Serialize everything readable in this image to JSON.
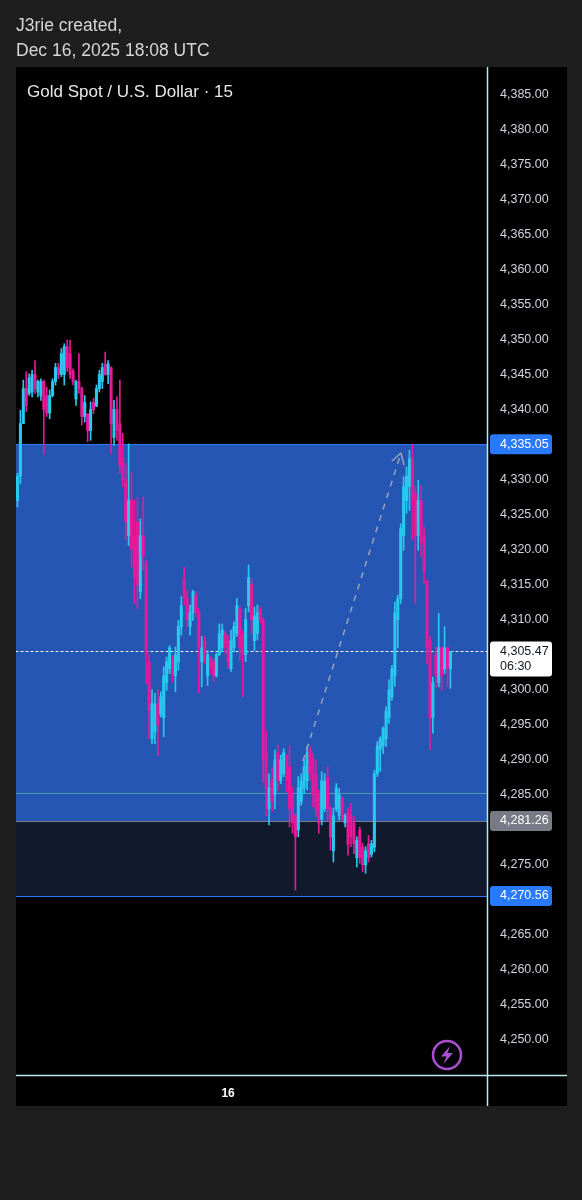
{
  "chart_data": {
    "type": "candlestick",
    "title": "Gold Spot / U.S. Dollar · 15",
    "annotations": [
      "J3rie created,",
      "Dec 16, 2025 18:08 UTC"
    ],
    "categories": [
      null,
      null,
      null,
      null,
      null,
      null,
      null,
      null,
      null,
      null,
      null,
      null,
      null,
      null,
      null,
      null,
      null,
      null,
      null,
      null,
      null,
      null,
      null,
      null,
      null,
      null,
      null,
      null,
      null,
      null,
      null,
      null,
      null,
      null,
      null,
      null,
      null,
      null,
      null,
      null,
      null,
      null,
      null,
      null,
      null,
      null,
      null,
      null,
      null,
      null,
      null,
      null,
      null,
      null,
      null,
      null,
      null,
      null,
      null,
      null,
      null,
      null,
      null,
      null,
      null,
      null,
      null,
      null,
      null,
      null,
      null,
      null,
      "16",
      null,
      null,
      null,
      null,
      null,
      null,
      null,
      null,
      null,
      null,
      null,
      null,
      null,
      null,
      null,
      null,
      null,
      null,
      null,
      null,
      null,
      null,
      null,
      null,
      null,
      null,
      null,
      null,
      null,
      null,
      null,
      null,
      null,
      null,
      null,
      null,
      null,
      null,
      null,
      null,
      null,
      null,
      null,
      null,
      null,
      null,
      null,
      null,
      null,
      null,
      null,
      null,
      null,
      null,
      null,
      null,
      null,
      null,
      null,
      null,
      null,
      null,
      null,
      null,
      null,
      null,
      null,
      null,
      null,
      null,
      null,
      null,
      null,
      null,
      null,
      null,
      null,
      null,
      null,
      null,
      null,
      null,
      null,
      null,
      null,
      null,
      null,
      null
    ],
    "ohlc": [
      [
        4327.0,
        4330.9,
        4326.1,
        4330.5
      ],
      [
        4330.5,
        4339.9,
        4329.4,
        4338.0
      ],
      [
        4338.0,
        4344.2,
        4338.0,
        4343.0
      ],
      [
        4343.0,
        4345.4,
        4339.7,
        4340.5
      ],
      [
        4342.3,
        4345.1,
        4342.0,
        4344.5
      ],
      [
        4342.5,
        4345.6,
        4341.8,
        4345.0
      ],
      [
        4345.0,
        4347.0,
        4342.3,
        4343.0
      ],
      [
        4342.5,
        4344.2,
        4341.8,
        4344.0
      ],
      [
        4342.0,
        4344.4,
        4341.3,
        4344.0
      ],
      [
        4344.0,
        4344.2,
        4333.5,
        4340.0
      ],
      [
        4342.0,
        4343.2,
        4339.0,
        4339.5
      ],
      [
        4339.5,
        4342.8,
        4338.7,
        4342.0
      ],
      [
        4342.0,
        4344.4,
        4341.8,
        4344.0
      ],
      [
        4344.0,
        4346.6,
        4343.5,
        4346.0
      ],
      [
        4346.0,
        4346.6,
        4344.4,
        4345.0
      ],
      [
        4345.0,
        4348.7,
        4344.7,
        4348.0
      ],
      [
        4345.0,
        4349.4,
        4343.5,
        4349.0
      ],
      [
        4349.0,
        4349.9,
        4345.4,
        4346.0
      ],
      [
        4348.0,
        4349.9,
        4344.4,
        4345.0
      ],
      [
        4345.5,
        4345.8,
        4343.5,
        4344.0
      ],
      [
        4341.5,
        4344.2,
        4340.6,
        4344.0
      ],
      [
        4344.0,
        4348.0,
        4342.3,
        4343.0
      ],
      [
        4343.0,
        4343.2,
        4337.8,
        4339.0
      ],
      [
        4339.0,
        4342.0,
        4338.2,
        4341.0
      ],
      [
        4339.4,
        4339.4,
        4335.4,
        4337.0
      ],
      [
        4337.0,
        4341.1,
        4335.6,
        4340.0
      ],
      [
        4341.0,
        4341.6,
        4339.4,
        4340.0
      ],
      [
        4340.5,
        4343.5,
        4340.4,
        4343.0
      ],
      [
        4343.0,
        4345.6,
        4342.5,
        4345.0
      ],
      [
        4344.0,
        4346.6,
        4343.0,
        4346.0
      ],
      [
        4346.5,
        4348.2,
        4344.9,
        4345.0
      ],
      [
        4345.0,
        4347.0,
        4343.7,
        4346.5
      ],
      [
        4346.0,
        4346.1,
        4333.7,
        4338.0
      ],
      [
        4336.0,
        4341.3,
        4334.9,
        4340.0
      ],
      [
        4340.0,
        4341.8,
        4335.6,
        4337.0
      ],
      [
        4338.0,
        4344.2,
        4330.9,
        4332.0
      ],
      [
        4333.0,
        4336.6,
        4329.0,
        4330.0
      ],
      [
        4330.0,
        4332.3,
        4321.4,
        4324.0
      ],
      [
        4322.0,
        4335.1,
        4320.6,
        4327.0
      ],
      [
        4327.0,
        4331.1,
        4317.5,
        4320.0
      ],
      [
        4322.0,
        4327.1,
        4312.3,
        4316.0
      ],
      [
        4324.0,
        4327.5,
        4311.6,
        4315.0
      ],
      [
        4314.0,
        4324.4,
        4313.0,
        4322.0
      ],
      [
        4322.0,
        4327.5,
        4317.1,
        4319.0
      ],
      [
        4318.0,
        4318.5,
        4300.9,
        4305.0
      ],
      [
        4304.0,
        4305.0,
        4293.0,
        4297.0
      ],
      [
        4293.0,
        4300.0,
        4292.3,
        4298.0
      ],
      [
        4294.0,
        4299.5,
        4292.3,
        4298.0
      ],
      [
        4298.0,
        4300.0,
        4290.6,
        4295.0
      ],
      [
        4296.5,
        4299.7,
        4296.1,
        4299.0
      ],
      [
        4296.0,
        4303.3,
        4293.3,
        4302.0
      ],
      [
        4301.0,
        4304.7,
        4299.9,
        4304.0
      ],
      [
        4303.0,
        4306.3,
        4302.3,
        4306.0
      ],
      [
        4304.5,
        4304.9,
        4301.1,
        4302.0
      ],
      [
        4302.0,
        4306.1,
        4299.7,
        4305.0
      ],
      [
        4304.0,
        4309.9,
        4302.8,
        4309.0
      ],
      [
        4309.0,
        4313.3,
        4307.8,
        4312.0
      ],
      [
        4316.0,
        4317.5,
        4312.1,
        4313.0
      ],
      [
        4313.0,
        4314.2,
        4309.0,
        4310.0
      ],
      [
        4309.0,
        4312.1,
        4307.8,
        4311.0
      ],
      [
        4311.0,
        4314.2,
        4309.9,
        4314.0
      ],
      [
        4313.5,
        4314.0,
        4310.4,
        4311.0
      ],
      [
        4311.0,
        4311.6,
        4299.5,
        4306.0
      ],
      [
        4304.0,
        4307.6,
        4300.4,
        4306.0
      ],
      [
        4307.0,
        4307.6,
        4303.7,
        4305.0
      ],
      [
        4302.0,
        4305.6,
        4300.6,
        4305.0
      ],
      [
        4304.5,
        4304.7,
        4302.3,
        4303.0
      ],
      [
        4304.0,
        4304.5,
        4301.1,
        4302.0
      ],
      [
        4302.0,
        4305.2,
        4301.8,
        4305.0
      ],
      [
        4305.0,
        4309.4,
        4304.9,
        4308.0
      ],
      [
        4306.0,
        4309.4,
        4305.4,
        4308.5
      ],
      [
        4308.0,
        4308.3,
        4305.2,
        4306.0
      ],
      [
        4307.0,
        4307.8,
        4303.0,
        4304.0
      ],
      [
        4303.0,
        4308.5,
        4302.6,
        4307.0
      ],
      [
        4306.0,
        4309.7,
        4305.4,
        4309.0
      ],
      [
        4308.0,
        4313.0,
        4307.6,
        4312.0
      ],
      [
        4311.5,
        4311.8,
        4304.2,
        4306.0
      ],
      [
        4308.0,
        4308.5,
        4299.0,
        4305.0
      ],
      [
        4305.0,
        4311.6,
        4304.0,
        4310.0
      ],
      [
        4312.0,
        4317.8,
        4311.1,
        4316.0
      ],
      [
        4315.0,
        4315.9,
        4308.0,
        4310.0
      ],
      [
        4307.0,
        4311.8,
        4305.6,
        4310.5
      ],
      [
        4308.0,
        4312.1,
        4307.1,
        4311.0
      ],
      [
        4311.5,
        4311.8,
        4309.5,
        4310.0
      ],
      [
        4310.0,
        4310.3,
        4286.8,
        4290.0
      ],
      [
        4291.0,
        4294.2,
        4282.0,
        4286.0
      ],
      [
        4283.0,
        4288.0,
        4280.7,
        4286.0
      ],
      [
        4287.0,
        4288.9,
        4282.6,
        4284.0
      ],
      [
        4285.0,
        4291.4,
        4283.0,
        4290.0
      ],
      [
        4291.0,
        4292.1,
        4285.7,
        4287.0
      ],
      [
        4287.0,
        4290.7,
        4286.6,
        4290.0
      ],
      [
        4288.0,
        4291.6,
        4287.6,
        4291.0
      ],
      [
        4290.5,
        4290.7,
        4285.4,
        4287.0
      ],
      [
        4289.0,
        4292.1,
        4280.4,
        4283.0
      ],
      [
        4285.0,
        4286.1,
        4279.5,
        4281.0
      ],
      [
        4282.0,
        4282.3,
        4271.4,
        4279.0
      ],
      [
        4280.0,
        4287.6,
        4279.0,
        4286.0
      ],
      [
        4284.0,
        4288.0,
        4283.5,
        4287.0
      ],
      [
        4286.0,
        4290.0,
        4285.2,
        4289.0
      ],
      [
        4287.0,
        4291.9,
        4285.7,
        4291.0
      ],
      [
        4291.5,
        4291.9,
        4287.1,
        4288.0
      ],
      [
        4290.0,
        4290.9,
        4283.3,
        4285.0
      ],
      [
        4288.0,
        4290.0,
        4281.9,
        4283.0
      ],
      [
        4285.0,
        4285.7,
        4279.5,
        4281.0
      ],
      [
        4281.5,
        4288.3,
        4280.7,
        4287.0
      ],
      [
        4283.0,
        4288.0,
        4282.6,
        4287.0
      ],
      [
        4287.5,
        4289.0,
        4281.4,
        4283.0
      ],
      [
        4283.0,
        4283.3,
        4277.1,
        4279.0
      ],
      [
        4277.0,
        4283.1,
        4275.4,
        4282.0
      ],
      [
        4283.0,
        4286.6,
        4282.6,
        4286.0
      ],
      [
        4282.0,
        4285.9,
        4281.4,
        4285.0
      ],
      [
        4284.5,
        4284.7,
        4281.4,
        4282.0
      ],
      [
        4281.0,
        4282.3,
        4280.4,
        4282.0
      ],
      [
        4282.5,
        4283.1,
        4276.4,
        4278.0
      ],
      [
        4282.0,
        4283.8,
        4277.6,
        4279.0
      ],
      [
        4281.0,
        4281.9,
        4276.6,
        4278.0
      ],
      [
        4276.0,
        4279.0,
        4274.7,
        4278.5
      ],
      [
        4280.0,
        4280.4,
        4275.2,
        4276.0
      ],
      [
        4277.5,
        4278.1,
        4274.0,
        4275.0
      ],
      [
        4275.0,
        4277.6,
        4273.8,
        4277.0
      ],
      [
        4278.0,
        4279.2,
        4275.4,
        4276.0
      ],
      [
        4276.5,
        4278.5,
        4276.1,
        4278.0
      ],
      [
        4277.5,
        4288.5,
        4276.9,
        4288.0
      ],
      [
        4288.0,
        4292.6,
        4287.6,
        4292.0
      ],
      [
        4291.5,
        4293.3,
        4288.3,
        4293.0
      ],
      [
        4292.0,
        4294.7,
        4290.9,
        4294.5
      ],
      [
        4293.0,
        4297.6,
        4291.9,
        4297.0
      ],
      [
        4296.0,
        4301.4,
        4295.2,
        4300.0
      ],
      [
        4299.0,
        4303.5,
        4298.5,
        4303.0
      ],
      [
        4302.0,
        4312.5,
        4300.5,
        4311.0
      ],
      [
        4310.0,
        4313.5,
        4306.0,
        4313.0
      ],
      [
        4313.0,
        4323.7,
        4312.3,
        4323.0
      ],
      [
        4322.0,
        4330.4,
        4319.9,
        4329.0
      ],
      [
        4327.0,
        4331.8,
        4325.2,
        4330.5
      ],
      [
        4329.0,
        4334.2,
        4325.6,
        4333.0
      ],
      [
        4333.0,
        4335.0,
        4321.4,
        4327.0
      ],
      [
        4328.0,
        4329.0,
        4312.3,
        4322.0
      ],
      [
        4322.0,
        4329.9,
        4319.9,
        4327.0
      ],
      [
        4327.0,
        4329.2,
        4319.0,
        4321.0
      ],
      [
        4322.0,
        4323.2,
        4315.2,
        4317.0
      ],
      [
        4315.5,
        4315.6,
        4303.7,
        4306.0
      ],
      [
        4307.0,
        4307.6,
        4291.4,
        4296.0
      ],
      [
        4296.0,
        4301.8,
        4293.8,
        4301.0
      ],
      [
        4305.0,
        4306.1,
        4300.4,
        4302.0
      ],
      [
        4301.0,
        4310.9,
        4300.4,
        4306.0
      ],
      [
        4306.0,
        4306.1,
        4299.9,
        4302.0
      ],
      [
        4303.0,
        4309.0,
        4302.3,
        4306.0
      ],
      [
        4306.0,
        4306.1,
        4300.4,
        4303.0
      ],
      [
        4303.0,
        4305.5,
        4300.2,
        4305.47
      ],
      null,
      null,
      null,
      null,
      null,
      null,
      null,
      null,
      null,
      null,
      null,
      null
    ],
    "colors": [
      "#29c8ee",
      "#29c8ee",
      "#29c8ee",
      "#e6199b",
      "#29c8ee",
      "#29c8ee",
      "#e6199b",
      "#29c8ee",
      "#29c8ee",
      "#e6199b",
      "#e6199b",
      "#29c8ee",
      "#29c8ee",
      "#29c8ee",
      "#e6199b",
      "#29c8ee",
      "#29c8ee",
      "#e6199b",
      "#e6199b",
      "#e6199b",
      "#29c8ee",
      "#e6199b",
      "#e6199b",
      "#29c8ee",
      "#e6199b",
      "#29c8ee",
      "#e6199b",
      "#29c8ee",
      "#29c8ee",
      "#29c8ee",
      "#e6199b",
      "#29c8ee",
      "#e6199b",
      "#29c8ee",
      "#e6199b",
      "#e6199b",
      "#e6199b",
      "#e6199b",
      "#29c8ee",
      "#e6199b",
      "#e6199b",
      "#e6199b",
      "#29c8ee",
      "#e6199b",
      "#e6199b",
      "#e6199b",
      "#29c8ee",
      "#29c8ee",
      "#e6199b",
      "#29c8ee",
      "#29c8ee",
      "#29c8ee",
      "#29c8ee",
      "#e6199b",
      "#29c8ee",
      "#29c8ee",
      "#29c8ee",
      "#e6199b",
      "#e6199b",
      "#29c8ee",
      "#29c8ee",
      "#e6199b",
      "#e6199b",
      "#29c8ee",
      "#e6199b",
      "#29c8ee",
      "#e6199b",
      "#e6199b",
      "#29c8ee",
      "#29c8ee",
      "#29c8ee",
      "#e6199b",
      "#e6199b",
      "#29c8ee",
      "#29c8ee",
      "#29c8ee",
      "#e6199b",
      "#e6199b",
      "#29c8ee",
      "#29c8ee",
      "#e6199b",
      "#29c8ee",
      "#29c8ee",
      "#e6199b",
      "#e6199b",
      "#e6199b",
      "#29c8ee",
      "#e6199b",
      "#29c8ee",
      "#e6199b",
      "#29c8ee",
      "#29c8ee",
      "#e6199b",
      "#e6199b",
      "#e6199b",
      "#e6199b",
      "#29c8ee",
      "#29c8ee",
      "#29c8ee",
      "#29c8ee",
      "#e6199b",
      "#e6199b",
      "#e6199b",
      "#e6199b",
      "#29c8ee",
      "#29c8ee",
      "#e6199b",
      "#e6199b",
      "#29c8ee",
      "#29c8ee",
      "#29c8ee",
      "#e6199b",
      "#29c8ee",
      "#e6199b",
      "#e6199b",
      "#e6199b",
      "#29c8ee",
      "#e6199b",
      "#e6199b",
      "#29c8ee",
      "#e6199b",
      "#29c8ee",
      "#29c8ee",
      "#29c8ee",
      "#29c8ee",
      "#29c8ee",
      "#29c8ee",
      "#29c8ee",
      "#29c8ee",
      "#29c8ee",
      "#29c8ee",
      "#29c8ee",
      "#29c8ee",
      "#29c8ee",
      "#29c8ee",
      "#e6199b",
      "#e6199b",
      "#29c8ee",
      "#e6199b",
      "#e6199b",
      "#e6199b",
      "#e6199b",
      "#29c8ee",
      "#e6199b",
      "#29c8ee",
      "#e6199b",
      "#29c8ee",
      "#e6199b",
      "#29c8ee",
      null,
      null,
      null,
      null,
      null,
      null,
      null,
      null,
      null,
      null,
      null,
      null
    ],
    "ylim": [
      4245,
      4388.9
    ],
    "yticks": [
      {
        "value": 4250,
        "label": "4,250.00"
      },
      {
        "value": 4255,
        "label": "4,255.00"
      },
      {
        "value": 4260,
        "label": "4,260.00"
      },
      {
        "value": 4265,
        "label": "4,265.00"
      },
      {
        "value": 4275,
        "label": "4,275.00"
      },
      {
        "value": 4285,
        "label": "4,285.00"
      },
      {
        "value": 4290,
        "label": "4,290.00"
      },
      {
        "value": 4295,
        "label": "4,295.00"
      },
      {
        "value": 4300,
        "label": "4,300.00"
      },
      {
        "value": 4310,
        "label": "4,310.00"
      },
      {
        "value": 4315,
        "label": "4,315.00"
      },
      {
        "value": 4320,
        "label": "4,320.00"
      },
      {
        "value": 4325,
        "label": "4,325.00"
      },
      {
        "value": 4330,
        "label": "4,330.00"
      },
      {
        "value": 4340,
        "label": "4,340.00"
      },
      {
        "value": 4345,
        "label": "4,345.00"
      },
      {
        "value": 4350,
        "label": "4,350.00"
      },
      {
        "value": 4355,
        "label": "4,355.00"
      },
      {
        "value": 4360,
        "label": "4,360.00"
      },
      {
        "value": 4365,
        "label": "4,365.00"
      },
      {
        "value": 4370,
        "label": "4,370.00"
      },
      {
        "value": 4375,
        "label": "4,375.00"
      },
      {
        "value": 4380,
        "label": "4,380.00"
      },
      {
        "value": 4385,
        "label": "4,385.00"
      }
    ],
    "bands": [
      {
        "axis": "y",
        "from": 4281.26,
        "to": 4335.05,
        "color": "#2656b4"
      },
      {
        "axis": "y",
        "from": 4270.56,
        "to": 4281.26,
        "color": "#101a2c"
      }
    ],
    "ref_lines": [
      {
        "axis": "y",
        "value": 4335.05,
        "label": "4,335.05",
        "color": "#2979ff"
      },
      {
        "axis": "y",
        "value": 4305.47,
        "label": "4,305.47\n06:30",
        "color": "#ffffff",
        "line_style": "dotted"
      },
      {
        "axis": "y",
        "value": 4285.2,
        "color": "#4e9aa8"
      },
      {
        "axis": "y",
        "value": 4281.26,
        "label": "4,281.26",
        "color": "#787b86"
      },
      {
        "axis": "y",
        "value": 4270.56,
        "label": "4,270.56",
        "color": "#2979ff"
      }
    ]
  }
}
